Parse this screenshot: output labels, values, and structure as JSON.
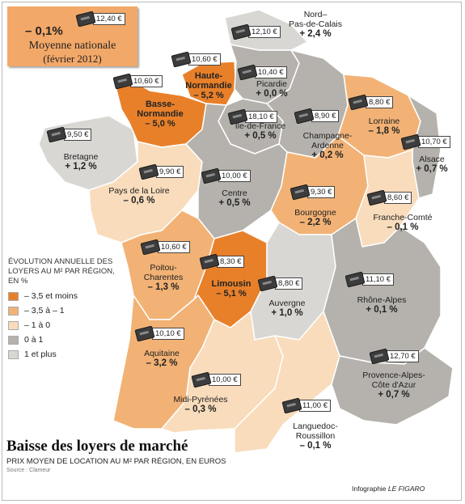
{
  "national": {
    "change": "– 0,1%",
    "price": "12,40 €",
    "label": "Moyenne nationale",
    "date": "(février 2012)"
  },
  "legend": {
    "title": "ÉVOLUTION ANNUELLE DES LOYERS AU M² PAR RÉGION, EN %",
    "items": [
      {
        "label": "– 3,5 et moins",
        "color": "#e8802a"
      },
      {
        "label": "– 3,5 à – 1",
        "color": "#f2b275"
      },
      {
        "label": "– 1 à 0",
        "color": "#f8dcbc"
      },
      {
        "label": "0 à 1",
        "color": "#b5b2ad"
      },
      {
        "label": "1 et plus",
        "color": "#d9d7d3"
      }
    ]
  },
  "regions": [
    {
      "id": "nord-pas-de-calais",
      "name": [
        "Nord–",
        "Pas-de-Calais"
      ],
      "change": "+ 2,4 %",
      "price": "12,10 €",
      "color": "#d9d7d3"
    },
    {
      "id": "picardie",
      "name": [
        "Picardie"
      ],
      "change": "+ 0,0 %",
      "price": "10,40 €",
      "color": "#b5b2ad"
    },
    {
      "id": "haute-normandie",
      "name": [
        "Haute-",
        "Normandie"
      ],
      "change": "– 5,2 %",
      "price": "10,60 €",
      "color": "#e8802a"
    },
    {
      "id": "basse-normandie",
      "name": [
        "Basse-",
        "Normandie"
      ],
      "change": "– 5,0 %",
      "price": "10,60 €",
      "color": "#e8802a"
    },
    {
      "id": "ile-de-france",
      "name": [
        "Île-de-France"
      ],
      "change": "+ 0,5 %",
      "price": "18,10 €",
      "color": "#b5b2ad"
    },
    {
      "id": "champagne-ardenne",
      "name": [
        "Champagne-",
        "Ardenne"
      ],
      "change": "+ 0,2 %",
      "price": "8,90 €",
      "color": "#b5b2ad"
    },
    {
      "id": "lorraine",
      "name": [
        "Lorraine"
      ],
      "change": "– 1,8 %",
      "price": "8,80 €",
      "color": "#f2b275"
    },
    {
      "id": "alsace",
      "name": [
        "Alsace"
      ],
      "change": "+ 0,7 %",
      "price": "10,70 €",
      "color": "#b5b2ad"
    },
    {
      "id": "bretagne",
      "name": [
        "Bretagne"
      ],
      "change": "+ 1,2 %",
      "price": "9,50 €",
      "color": "#d9d7d3"
    },
    {
      "id": "pays-de-la-loire",
      "name": [
        "Pays de la Loire"
      ],
      "change": "– 0,6 %",
      "price": "9,90 €",
      "color": "#f8dcbc"
    },
    {
      "id": "centre",
      "name": [
        "Centre"
      ],
      "change": "+ 0,5 %",
      "price": "10,00 €",
      "color": "#b5b2ad"
    },
    {
      "id": "bourgogne",
      "name": [
        "Bourgogne"
      ],
      "change": "– 2,2 %",
      "price": "9,30 €",
      "color": "#f2b275"
    },
    {
      "id": "franche-comte",
      "name": [
        "Franche-Comté"
      ],
      "change": "– 0,1 %",
      "price": "8,60 €",
      "color": "#f8dcbc"
    },
    {
      "id": "poitou-charentes",
      "name": [
        "Poitou-",
        "Charentes"
      ],
      "change": "– 1,3 %",
      "price": "10,60 €",
      "color": "#f2b275"
    },
    {
      "id": "limousin",
      "name": [
        "Limousin"
      ],
      "change": "– 5,1 %",
      "price": "8,30 €",
      "color": "#e8802a"
    },
    {
      "id": "auvergne",
      "name": [
        "Auvergne"
      ],
      "change": "+ 1,0 %",
      "price": "8,80 €",
      "color": "#d9d7d3"
    },
    {
      "id": "rhone-alpes",
      "name": [
        "Rhône-Alpes"
      ],
      "change": "+ 0,1 %",
      "price": "11,10 €",
      "color": "#b5b2ad"
    },
    {
      "id": "aquitaine",
      "name": [
        "Aquitaine"
      ],
      "change": "– 3,2 %",
      "price": "10,10 €",
      "color": "#f2b275"
    },
    {
      "id": "midi-pyrenees",
      "name": [
        "Midi-Pyrénées"
      ],
      "change": "– 0,3 %",
      "price": "10,00 €",
      "color": "#f8dcbc"
    },
    {
      "id": "languedoc-roussillon",
      "name": [
        "Languedoc-",
        "Roussillon"
      ],
      "change": "– 0,1 %",
      "price": "11,00 €",
      "color": "#f8dcbc"
    },
    {
      "id": "provence-alpes-cote-dazur",
      "name": [
        "Provence-Alpes-",
        "Côte d'Azur"
      ],
      "change": "+ 0,7 %",
      "price": "12,70 €",
      "color": "#b5b2ad"
    }
  ],
  "title": "Baisse des loyers de marché",
  "subtitle": "PRIX MOYEN DE LOCATION AU M² PAR RÉGION, EN EUROS",
  "source": "Source : Clameur",
  "credit": {
    "prefix": "Infographie ",
    "brand": "LE FIGARO"
  }
}
